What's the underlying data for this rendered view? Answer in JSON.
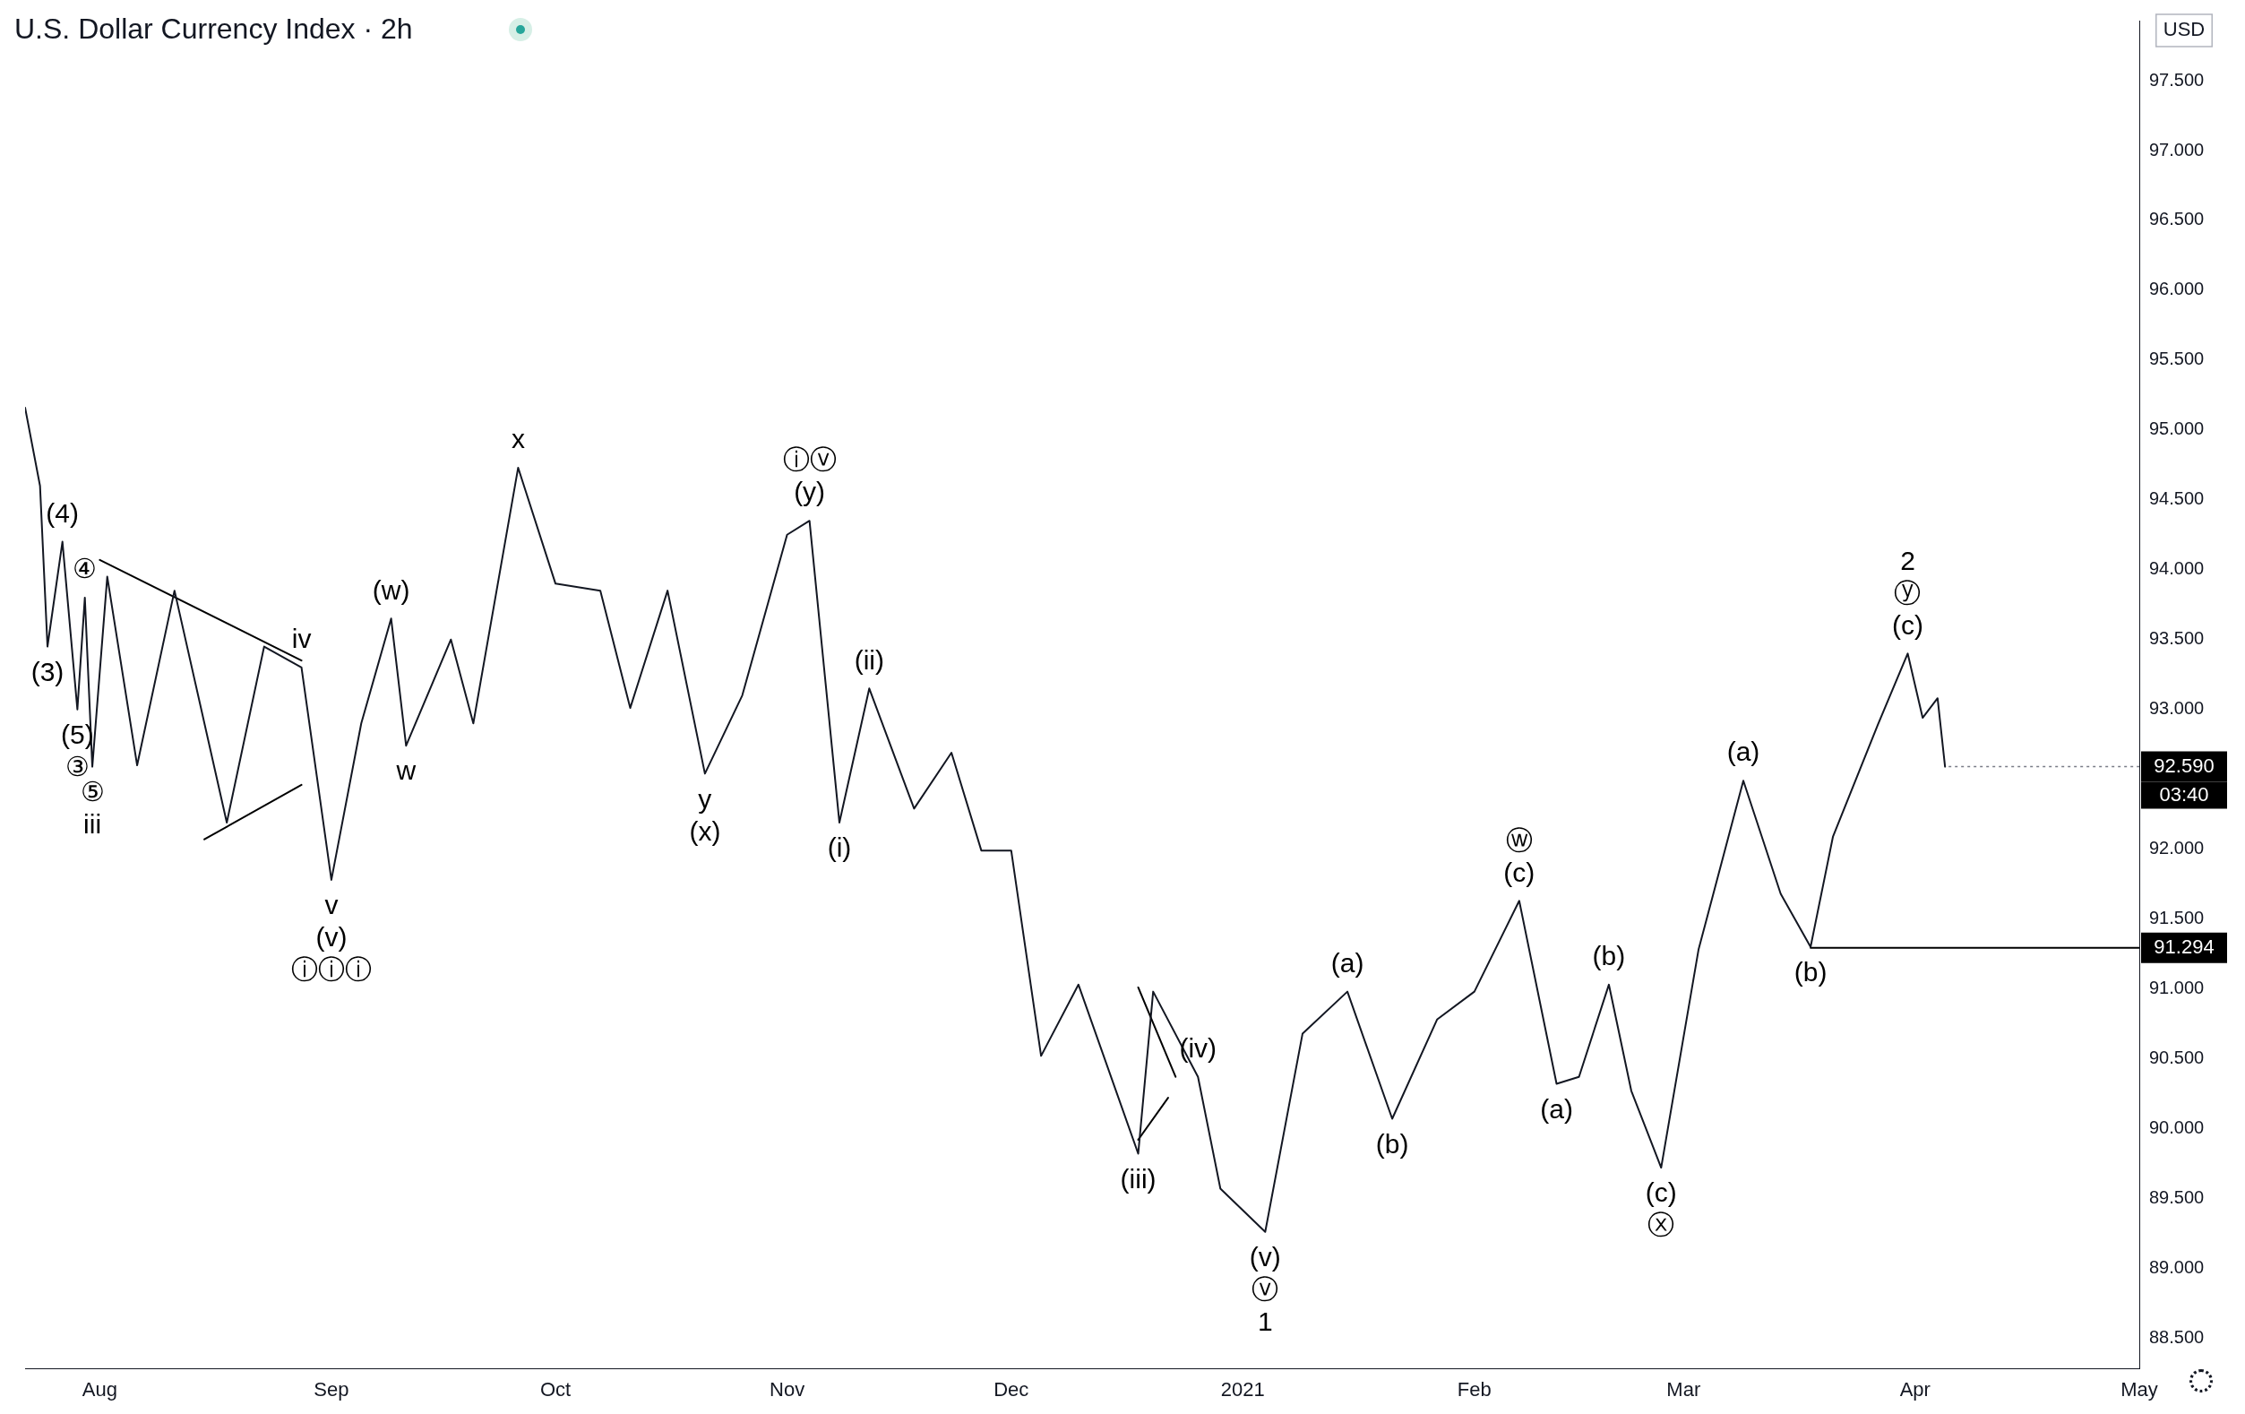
{
  "chart_data": {
    "type": "line",
    "title": "U.S. Dollar Currency Index · 2h",
    "x": [
      "2020-07-22",
      "2020-07-24",
      "2020-07-25",
      "2020-07-27",
      "2020-07-29",
      "2020-07-30",
      "2020-07-31",
      "2020-08-02",
      "2020-08-06",
      "2020-08-11",
      "2020-08-18",
      "2020-08-23",
      "2020-08-28",
      "2020-09-01",
      "2020-09-05",
      "2020-09-09",
      "2020-09-11",
      "2020-09-17",
      "2020-09-20",
      "2020-09-26",
      "2020-10-01",
      "2020-10-07",
      "2020-10-11",
      "2020-10-16",
      "2020-10-21",
      "2020-10-26",
      "2020-11-01",
      "2020-11-04",
      "2020-11-08",
      "2020-11-12",
      "2020-11-18",
      "2020-11-23",
      "2020-11-27",
      "2020-12-01",
      "2020-12-05",
      "2020-12-10",
      "2020-12-18",
      "2020-12-20",
      "2020-12-26",
      "2020-12-29",
      "2021-01-04",
      "2021-01-09",
      "2021-01-15",
      "2021-01-21",
      "2021-01-27",
      "2021-02-01",
      "2021-02-07",
      "2021-02-12",
      "2021-02-15",
      "2021-02-19",
      "2021-02-22",
      "2021-02-26",
      "2021-03-03",
      "2021-03-09",
      "2021-03-14",
      "2021-03-18",
      "2021-03-21",
      "2021-03-27",
      "2021-03-31",
      "2021-04-02",
      "2021-04-04",
      "2021-04-05"
    ],
    "series": [
      {
        "color": "#131722",
        "values": [
          95.16,
          94.6,
          93.45,
          94.2,
          93.0,
          93.8,
          92.59,
          93.95,
          92.6,
          93.85,
          92.19,
          93.45,
          93.3,
          91.78,
          92.9,
          93.65,
          92.74,
          93.5,
          92.9,
          94.73,
          93.9,
          93.85,
          93.01,
          93.85,
          92.54,
          93.1,
          94.25,
          94.35,
          92.19,
          93.15,
          92.29,
          92.69,
          91.99,
          91.99,
          90.52,
          91.03,
          89.82,
          90.98,
          90.37,
          89.57,
          89.26,
          90.68,
          90.98,
          90.07,
          90.78,
          90.98,
          91.63,
          90.32,
          90.37,
          91.03,
          90.27,
          89.72,
          91.28,
          92.49,
          91.68,
          91.3,
          92.09,
          92.89,
          93.4,
          92.94,
          93.08,
          92.59
        ]
      },
      {
        "type": "line",
        "color": "#000000",
        "x": [
          "2020-08-01",
          "2020-08-28"
        ],
        "values": [
          94.07,
          93.35
        ]
      },
      {
        "type": "line",
        "color": "#000000",
        "x": [
          "2020-08-15",
          "2020-08-28"
        ],
        "values": [
          92.07,
          92.46
        ]
      },
      {
        "type": "line",
        "color": "#000000",
        "x": [
          "2020-12-18",
          "2020-12-23"
        ],
        "values": [
          91.01,
          90.37
        ]
      },
      {
        "type": "line",
        "color": "#000000",
        "x": [
          "2020-12-18",
          "2020-12-22"
        ],
        "values": [
          89.92,
          90.22
        ]
      },
      {
        "type": "line",
        "color": "#000000",
        "x": [
          "2021-03-18",
          "2021-05-01"
        ],
        "values": [
          91.294,
          91.294
        ]
      }
    ],
    "xlim": [
      "2020-07-22",
      "2021-05-01"
    ],
    "xticks": [
      {
        "value": "2020-08-01",
        "label": "Aug"
      },
      {
        "value": "2020-09-01",
        "label": "Sep"
      },
      {
        "value": "2020-10-01",
        "label": "Oct"
      },
      {
        "value": "2020-11-01",
        "label": "Nov"
      },
      {
        "value": "2020-12-01",
        "label": "Dec"
      },
      {
        "value": "2021-01-01",
        "label": "2021"
      },
      {
        "value": "2021-02-01",
        "label": "Feb"
      },
      {
        "value": "2021-03-01",
        "label": "Mar"
      },
      {
        "value": "2021-04-01",
        "label": "Apr"
      },
      {
        "value": "2021-05-01",
        "label": "May"
      }
    ],
    "ylim": [
      88.28,
      97.93
    ],
    "yticks": [
      {
        "value": 88.5,
        "label": "88.500"
      },
      {
        "value": 89,
        "label": "89.000"
      },
      {
        "value": 89.5,
        "label": "89.500"
      },
      {
        "value": 90,
        "label": "90.000"
      },
      {
        "value": 90.5,
        "label": "90.500"
      },
      {
        "value": 91,
        "label": "91.000"
      },
      {
        "value": 91.5,
        "label": "91.500"
      },
      {
        "value": 92,
        "label": "92.000"
      },
      {
        "value": 93,
        "label": "93.000"
      },
      {
        "value": 93.5,
        "label": "93.500"
      },
      {
        "value": 94,
        "label": "94.000"
      },
      {
        "value": 94.5,
        "label": "94.500"
      },
      {
        "value": 95,
        "label": "95.000"
      },
      {
        "value": 95.5,
        "label": "95.500"
      },
      {
        "value": 96,
        "label": "96.000"
      },
      {
        "value": 96.5,
        "label": "96.500"
      },
      {
        "value": 97,
        "label": "97.000"
      },
      {
        "value": 97.5,
        "label": "97.500"
      }
    ],
    "grid": false,
    "legend": false,
    "marker": "none",
    "line_style": "solid",
    "annotations": [
      "USD",
      {
        "text": "92.590",
        "x": "2021-04-05",
        "y": 92.59
      },
      "03:40",
      {
        "text": "91.294",
        "x": "2021-05-01",
        "y": 91.294
      },
      {
        "text": "(3)",
        "x": "2020-07-25",
        "y": 93.45
      },
      {
        "text": "(4)",
        "x": "2020-07-27",
        "y": 94.2
      },
      {
        "text": "(5)",
        "x": "2020-07-29",
        "y": 93.0
      },
      "③",
      {
        "text": "④",
        "x": "2020-07-30",
        "y": 93.8
      },
      {
        "text": "⑤",
        "x": "2020-07-31",
        "y": 92.59
      },
      "iii",
      {
        "text": "iv",
        "x": "2020-08-28",
        "y": 93.3
      },
      {
        "text": "v",
        "x": "2020-09-01",
        "y": 91.78
      },
      "(v)",
      "ⓘⓘⓘ",
      {
        "text": "(w)",
        "x": "2020-09-09",
        "y": 93.65
      },
      {
        "text": "w",
        "x": "2020-09-11",
        "y": 92.74
      },
      {
        "text": "x",
        "x": "2020-09-26",
        "y": 94.73
      },
      {
        "text": "y",
        "x": "2020-10-21",
        "y": 92.54
      },
      "(x)",
      {
        "text": "(y)",
        "x": "2020-11-04",
        "y": 94.35
      },
      "ⓘⓥ",
      {
        "text": "(i)",
        "x": "2020-11-08",
        "y": 92.19
      },
      {
        "text": "(ii)",
        "x": "2020-11-12",
        "y": 93.15
      },
      {
        "text": "(iii)",
        "x": "2020-12-18",
        "y": 89.82
      },
      {
        "text": "(iv)",
        "x": "2020-12-26",
        "y": 90.37
      },
      {
        "text": "(v)",
        "x": "2021-01-04",
        "y": 89.26
      },
      "ⓥ",
      "1",
      {
        "text": "(a)",
        "x": "2021-01-15",
        "y": 90.98
      },
      {
        "text": "(b)",
        "x": "2021-01-21",
        "y": 90.07
      },
      {
        "text": "(c)",
        "x": "2021-02-07",
        "y": 91.63
      },
      "ⓦ",
      {
        "text": "(a)",
        "x": "2021-02-12",
        "y": 90.32
      },
      {
        "text": "(b)",
        "x": "2021-02-19",
        "y": 91.03
      },
      {
        "text": "(c)",
        "x": "2021-02-26",
        "y": 89.72
      },
      "ⓧ",
      {
        "text": "(a)",
        "x": "2021-03-09",
        "y": 92.49
      },
      {
        "text": "(b)",
        "x": "2021-03-18",
        "y": 91.3
      },
      {
        "text": "(c)",
        "x": "2021-03-31",
        "y": 93.4
      },
      "ⓨ",
      "2"
    ]
  }
}
